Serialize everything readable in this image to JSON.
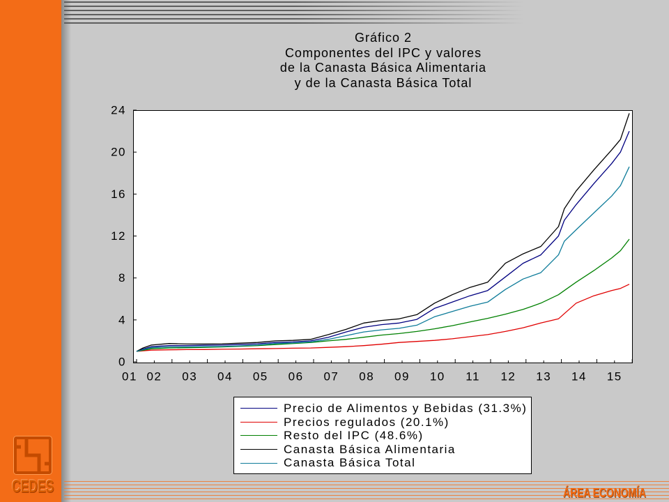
{
  "slide": {
    "logo_text": "CEDES",
    "section_label": "ÁREA ECONOMÍA"
  },
  "icons": {
    "logo": "cedes-logo-icon"
  },
  "colors": {
    "sidebar_orange": "#F36C17",
    "background": "#C9C9C9",
    "section_label": "#F26A12"
  },
  "chart_data": {
    "type": "line",
    "title": [
      "Gráfico 2",
      "Componentes del IPC y valores",
      "de la Canasta Básica Alimentaria",
      "y de la Canasta Básica Total"
    ],
    "xlabel": "",
    "ylabel": "",
    "x": [
      "2002-01",
      "2002-03",
      "2002-06",
      "2002-12",
      "2003-06",
      "2003-12",
      "2004-06",
      "2004-12",
      "2005-06",
      "2005-12",
      "2006-06",
      "2006-12",
      "2007-06",
      "2007-12",
      "2008-06",
      "2008-12",
      "2009-06",
      "2009-12",
      "2010-06",
      "2010-12",
      "2011-06",
      "2011-12",
      "2012-06",
      "2012-12",
      "2013-06",
      "2013-12",
      "2014-02",
      "2014-06",
      "2014-12",
      "2015-06",
      "2015-09",
      "2015-12"
    ],
    "xlim": [
      "2002-01",
      "2015-12"
    ],
    "x_tick_labels": [
      "01",
      "02",
      "03",
      "04",
      "05",
      "06",
      "07",
      "08",
      "09",
      "10",
      "11",
      "12",
      "13",
      "14",
      "15"
    ],
    "ylim": [
      0,
      24
    ],
    "y_ticks": [
      0,
      4,
      8,
      12,
      16,
      20,
      24
    ],
    "grid": false,
    "legend_position": "bottom",
    "series": [
      {
        "name": "Precio de Alimentos y Bebidas (31.3%)",
        "color": "#000080",
        "values": [
          1.0,
          1.2,
          1.45,
          1.55,
          1.55,
          1.58,
          1.6,
          1.65,
          1.72,
          1.85,
          1.9,
          2.0,
          2.35,
          2.85,
          3.3,
          3.55,
          3.7,
          4.05,
          5.1,
          5.7,
          6.3,
          6.8,
          8.1,
          9.4,
          10.2,
          12.0,
          13.5,
          15.0,
          17.0,
          18.9,
          20.0,
          22.0
        ]
      },
      {
        "name": "Precios regulados (20.1%)",
        "color": "#E00000",
        "values": [
          1.0,
          1.05,
          1.12,
          1.15,
          1.17,
          1.18,
          1.2,
          1.22,
          1.25,
          1.27,
          1.3,
          1.32,
          1.38,
          1.45,
          1.55,
          1.68,
          1.85,
          1.95,
          2.05,
          2.2,
          2.4,
          2.6,
          2.9,
          3.25,
          3.7,
          4.1,
          4.6,
          5.6,
          6.3,
          6.8,
          7.0,
          7.4
        ]
      },
      {
        "name": "Resto del IPC (48.6%)",
        "color": "#008000",
        "values": [
          1.0,
          1.1,
          1.25,
          1.32,
          1.35,
          1.38,
          1.42,
          1.48,
          1.55,
          1.65,
          1.75,
          1.85,
          2.0,
          2.15,
          2.35,
          2.55,
          2.7,
          2.9,
          3.15,
          3.45,
          3.8,
          4.15,
          4.55,
          5.0,
          5.6,
          6.4,
          6.8,
          7.6,
          8.7,
          9.9,
          10.6,
          11.7
        ]
      },
      {
        "name": "Canasta Básica Alimentaria",
        "color": "#000000",
        "values": [
          1.0,
          1.3,
          1.6,
          1.75,
          1.7,
          1.7,
          1.72,
          1.78,
          1.85,
          2.0,
          2.05,
          2.15,
          2.6,
          3.1,
          3.7,
          3.95,
          4.1,
          4.5,
          5.6,
          6.4,
          7.1,
          7.6,
          9.4,
          10.3,
          11.0,
          12.9,
          14.6,
          16.3,
          18.3,
          20.2,
          21.2,
          23.7
        ]
      },
      {
        "name": "Canasta Básica Total",
        "color": "#0E7C9A",
        "values": [
          1.0,
          1.15,
          1.35,
          1.42,
          1.42,
          1.45,
          1.47,
          1.52,
          1.6,
          1.75,
          1.8,
          1.9,
          2.15,
          2.5,
          2.85,
          3.05,
          3.2,
          3.5,
          4.3,
          4.8,
          5.3,
          5.7,
          6.9,
          7.9,
          8.5,
          10.2,
          11.5,
          12.6,
          14.2,
          15.8,
          16.8,
          18.6
        ]
      }
    ]
  }
}
